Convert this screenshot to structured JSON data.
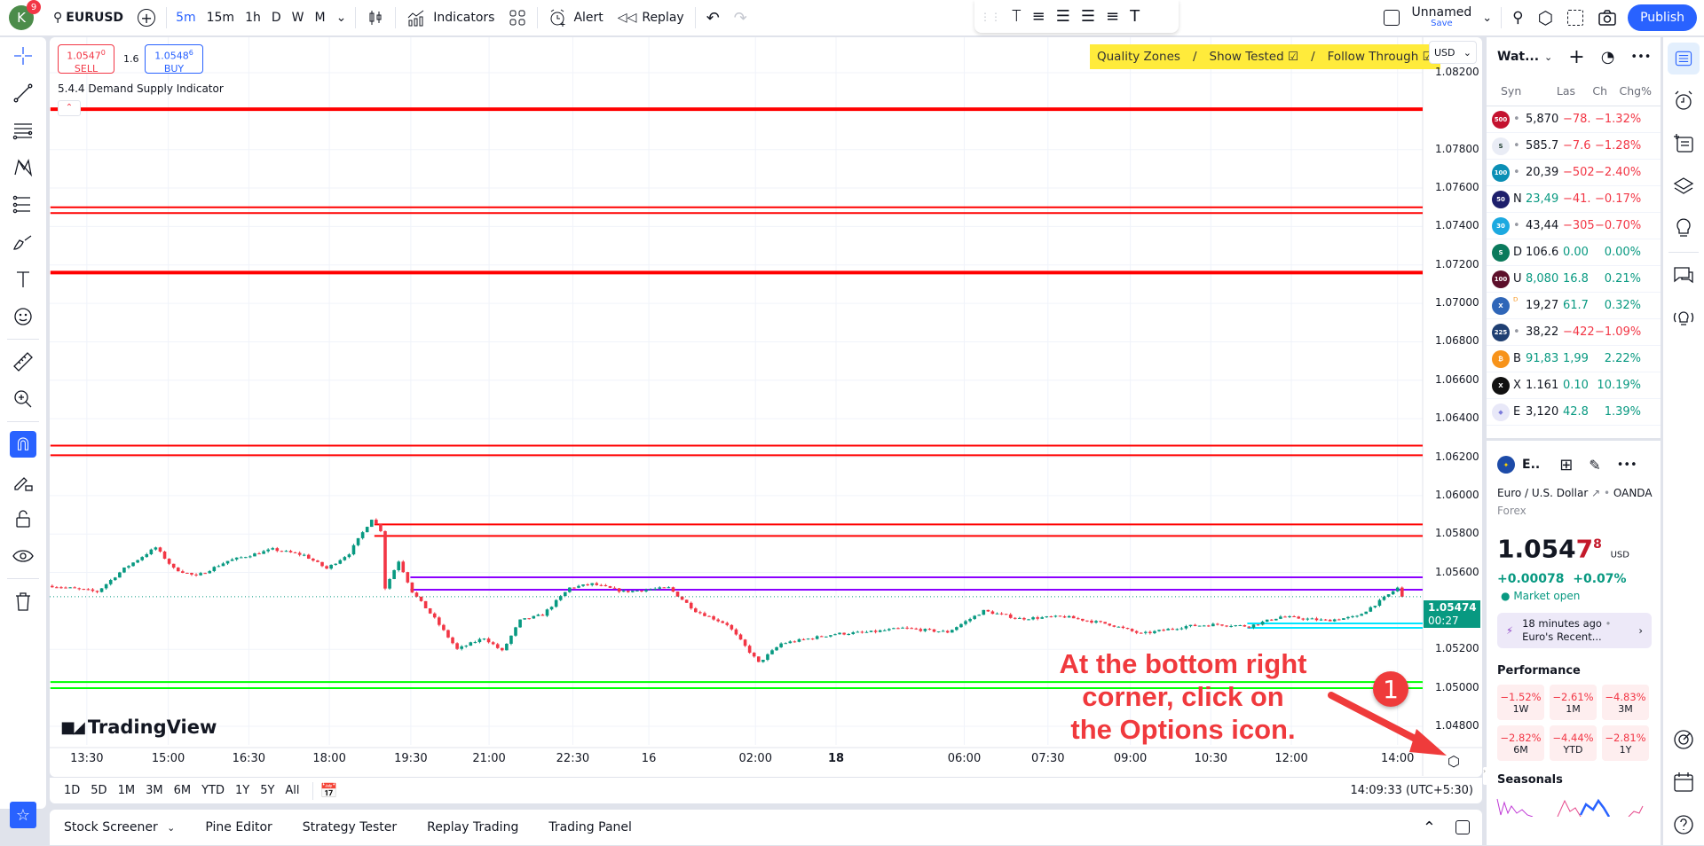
{
  "topbar": {
    "avatar_letter": "K",
    "notif_count": "9",
    "symbol": "EURUSD",
    "timeframes": [
      "5m",
      "15m",
      "1h",
      "D",
      "W",
      "M"
    ],
    "active_tf": "5m",
    "indicators": "Indicators",
    "alert": "Alert",
    "replay": "Replay",
    "layout_name": "Unnamed",
    "save": "Save",
    "publish": "Publish"
  },
  "trade": {
    "sell_price": "1.0547",
    "sell_sup": "0",
    "sell": "SELL",
    "spread": "1.6",
    "buy_price": "1.0548",
    "buy_sup": "6",
    "buy": "BUY"
  },
  "indicator_name": "5.4.4 Demand Supply Indicator",
  "banner": {
    "quality": "Quality Zones",
    "sep": "/",
    "tested": "Show Tested ☑",
    "follow": "Follow Through ☑"
  },
  "currency": "USD",
  "colors": {
    "up": "#089981",
    "down": "#f23645",
    "accent": "#2962ff",
    "annotation": "#f0393d",
    "supply": "#ff0000",
    "purple": "#8b00ff",
    "cyan": "#00e5ff",
    "demand": "#00ff00"
  },
  "chart_data": {
    "type": "candlestick",
    "price_ticks": [
      "1.08200",
      "1.07800",
      "1.07600",
      "1.07400",
      "1.07200",
      "1.07000",
      "1.06800",
      "1.06600",
      "1.06400",
      "1.06200",
      "1.06000",
      "1.05800",
      "1.05600",
      "1.05200",
      "1.05000",
      "1.04800"
    ],
    "price_range": [
      1.048,
      1.082
    ],
    "time_ticks": [
      {
        "label": "13:30",
        "bar": 7.7
      },
      {
        "label": "15:00",
        "bar": 25.8
      },
      {
        "label": "16:30",
        "bar": 43.7
      },
      {
        "label": "18:00",
        "bar": 61.6
      },
      {
        "label": "19:30",
        "bar": 79.7
      },
      {
        "label": "21:00",
        "bar": 97.1
      },
      {
        "label": "22:30",
        "bar": 115.7
      },
      {
        "label": "16",
        "bar": 132.6
      },
      {
        "label": "02:00",
        "bar": 156.3
      },
      {
        "label": "18",
        "bar": 174.2,
        "bold": true
      },
      {
        "label": "06:00",
        "bar": 202.7
      },
      {
        "label": "07:30",
        "bar": 221.3
      },
      {
        "label": "09:00",
        "bar": 239.6
      },
      {
        "label": "10:30",
        "bar": 257.5
      },
      {
        "label": "12:00",
        "bar": 275.4
      },
      {
        "label": "14:00",
        "bar": 299
      }
    ],
    "price_path": [
      [
        0,
        1.0553
      ],
      [
        10,
        1.055
      ],
      [
        16,
        1.0562
      ],
      [
        23,
        1.0573
      ],
      [
        27,
        1.0562
      ],
      [
        32,
        1.0558
      ],
      [
        39,
        1.0566
      ],
      [
        49,
        1.0572
      ],
      [
        56,
        1.0569
      ],
      [
        61,
        1.0562
      ],
      [
        66,
        1.057
      ],
      [
        71,
        1.0588
      ],
      [
        73,
        1.0582
      ],
      [
        74,
        1.0552
      ],
      [
        77,
        1.0566
      ],
      [
        80,
        1.055
      ],
      [
        85,
        1.0536
      ],
      [
        90,
        1.052
      ],
      [
        96,
        1.0526
      ],
      [
        100,
        1.0519
      ],
      [
        104,
        1.0535
      ],
      [
        109,
        1.0538
      ],
      [
        115,
        1.0552
      ],
      [
        120,
        1.0554
      ],
      [
        127,
        1.055
      ],
      [
        137,
        1.0552
      ],
      [
        143,
        1.054
      ],
      [
        150,
        1.0533
      ],
      [
        157,
        1.0513
      ],
      [
        162,
        1.0523
      ],
      [
        174,
        1.0528
      ],
      [
        182,
        1.0529
      ],
      [
        189,
        1.0531
      ],
      [
        199,
        1.0529
      ],
      [
        207,
        1.054
      ],
      [
        215,
        1.0536
      ],
      [
        225,
        1.0537
      ],
      [
        235,
        1.0533
      ],
      [
        242,
        1.0528
      ],
      [
        252,
        1.0532
      ],
      [
        259,
        1.0533
      ],
      [
        266,
        1.0532
      ],
      [
        273,
        1.0537
      ],
      [
        283,
        1.0535
      ],
      [
        290,
        1.0537
      ],
      [
        295,
        1.0545
      ],
      [
        299,
        1.0552
      ],
      [
        300,
        1.05474
      ]
    ],
    "zones": [
      {
        "price": 1.0801,
        "color": "#ff0000",
        "from_bar": 0,
        "thick": true
      },
      {
        "price": 1.075,
        "color": "#ff0000",
        "from_bar": 0
      },
      {
        "price": 1.0747,
        "color": "#ff0000",
        "from_bar": 0
      },
      {
        "price": 1.0716,
        "color": "#ff0000",
        "from_bar": 0,
        "thick": true
      },
      {
        "price": 1.0626,
        "color": "#ff0000",
        "from_bar": 0
      },
      {
        "price": 1.0621,
        "color": "#ff0000",
        "from_bar": 0
      },
      {
        "price": 1.0585,
        "color": "#ff0000",
        "from_bar": 72
      },
      {
        "price": 1.0579,
        "color": "#ff0000",
        "from_bar": 72
      },
      {
        "price": 1.05575,
        "color": "#8b00ff",
        "from_bar": 80
      },
      {
        "price": 1.0551,
        "color": "#8b00ff",
        "from_bar": 80
      },
      {
        "price": 1.05335,
        "color": "#00e5ff",
        "from_bar": 266
      },
      {
        "price": 1.05312,
        "color": "#00e5ff",
        "from_bar": 266
      },
      {
        "price": 1.0503,
        "color": "#00ff00",
        "from_bar": 0
      },
      {
        "price": 1.04998,
        "color": "#00ff00",
        "from_bar": 0
      }
    ],
    "last_price": "1.05474",
    "countdown": "00:27"
  },
  "annotation": {
    "text_lines": [
      "At the bottom right",
      "corner, click on",
      "the Options icon."
    ],
    "step": "1"
  },
  "logo": "TradingView",
  "ranges": [
    "1D",
    "5D",
    "1M",
    "3M",
    "6M",
    "YTD",
    "1Y",
    "5Y",
    "All"
  ],
  "clock": "14:09:33 (UTC+5:30)",
  "bottom_tabs": [
    "Stock Screener",
    "Pine Editor",
    "Strategy Tester",
    "Replay Trading",
    "Trading Panel"
  ],
  "watchlist": {
    "title": "Wat...",
    "headers": [
      "Syn",
      "Las",
      "Ch",
      "Chg%"
    ],
    "rows": [
      {
        "icon": "500",
        "bg": "#c4122f",
        "name": "•",
        "last": "5,870",
        "chg": "−78.",
        "pct": "−1.32%",
        "lc": "",
        "cc": "dn"
      },
      {
        "icon": "S",
        "bg": "#e9ecf5",
        "fg": "#1f3d2f",
        "name": "•",
        "last": "585.7",
        "chg": "−7.6",
        "pct": "−1.28%",
        "lc": "",
        "cc": "dn"
      },
      {
        "icon": "100",
        "bg": "#0b8fb5",
        "name": "•",
        "last": "20,39",
        "chg": "−502",
        "pct": "−2.40%",
        "lc": "",
        "cc": "dn"
      },
      {
        "icon": "50",
        "bg": "#1d1f6b",
        "name": "N",
        "last": "23,49",
        "chg": "−41.",
        "pct": "−0.17%",
        "lc": "up",
        "cc": "dn"
      },
      {
        "icon": "30",
        "bg": "#1ca9e0",
        "name": "•",
        "last": "43,44",
        "chg": "−305",
        "pct": "−0.70%",
        "lc": "",
        "cc": "dn"
      },
      {
        "icon": "S",
        "bg": "#0b7a5c",
        "name": "D",
        "last": "106.6",
        "chg": "0.00",
        "pct": "0.00%",
        "lc": "",
        "cc": "up"
      },
      {
        "icon": "100",
        "bg": "#5c0f2a",
        "name": "U",
        "last": "8,080",
        "chg": "16.8",
        "pct": "0.21%",
        "lc": "up",
        "cc": "up"
      },
      {
        "icon": "X",
        "bg": "#2f66b8",
        "name": "ᴰ",
        "last": "19,27",
        "chg": "61.7",
        "pct": "0.32%",
        "lc": "",
        "cc": "up"
      },
      {
        "icon": "225",
        "bg": "#1f3f72",
        "name": "•",
        "last": "38,22",
        "chg": "−422",
        "pct": "−1.09%",
        "lc": "",
        "cc": "dn"
      },
      {
        "icon": "₿",
        "bg": "#f7931a",
        "name": "B",
        "last": "91,83",
        "chg": "1,99",
        "pct": "2.22%",
        "lc": "up",
        "cc": "up"
      },
      {
        "icon": "X",
        "bg": "#111111",
        "name": "X",
        "last": "1.161",
        "chg": "0.10",
        "pct": "10.19%",
        "lc": "",
        "cc": "up"
      },
      {
        "icon": "◆",
        "bg": "#e8e8f8",
        "fg": "#7b7bdb",
        "name": "E",
        "last": "3,120",
        "chg": "42.8",
        "pct": "1.39%",
        "lc": "",
        "cc": "up"
      }
    ]
  },
  "details": {
    "short": "E..",
    "name": "Euro / U.S. Dollar",
    "exchange": "OANDA",
    "type": "Forex",
    "price_main": "1.054",
    "price_red": "7",
    "price_sup": "8",
    "currency": "USD",
    "change": "+0.00078",
    "change_pct": "+0.07%",
    "status": "Market open",
    "news_time": "18 minutes ago",
    "news_title": "Euro's Recent...",
    "performance_title": "Performance",
    "performance": [
      {
        "v": "−1.52%",
        "p": "1W"
      },
      {
        "v": "−2.61%",
        "p": "1M"
      },
      {
        "v": "−4.83%",
        "p": "3M"
      },
      {
        "v": "−2.82%",
        "p": "6M"
      },
      {
        "v": "−4.44%",
        "p": "YTD"
      },
      {
        "v": "−2.81%",
        "p": "1Y"
      }
    ],
    "seasonals_title": "Seasonals"
  }
}
